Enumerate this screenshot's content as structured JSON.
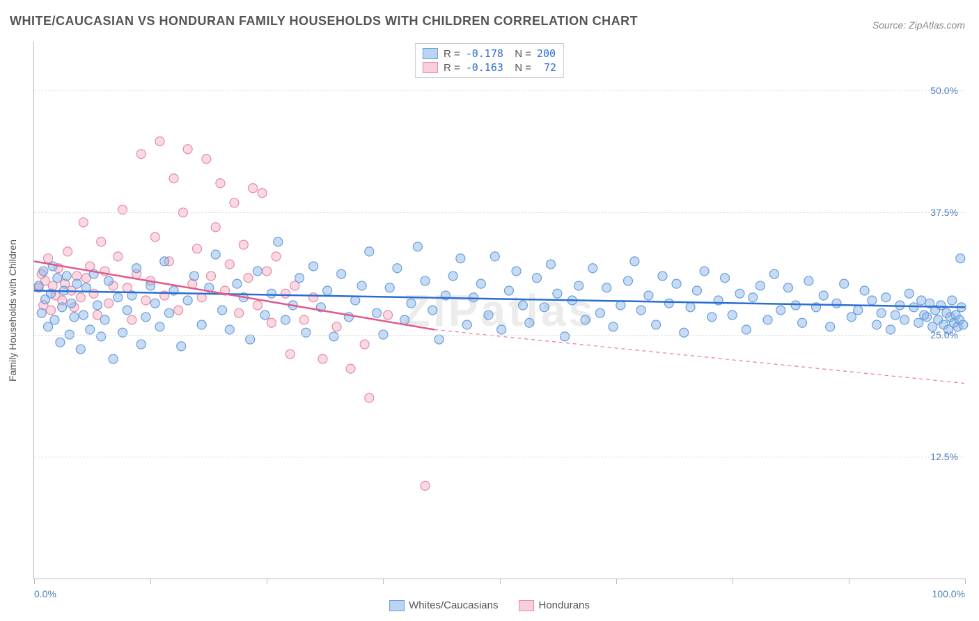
{
  "title": "WHITE/CAUCASIAN VS HONDURAN FAMILY HOUSEHOLDS WITH CHILDREN CORRELATION CHART",
  "source": "Source: ZipAtlas.com",
  "watermark": "ZIPatlas",
  "ylabel": "Family Households with Children",
  "axes": {
    "xlim": [
      0,
      100
    ],
    "ylim": [
      0,
      55
    ],
    "xticks": [
      0,
      12.5,
      25,
      37.5,
      50,
      62.5,
      75,
      87.5,
      100
    ],
    "xtick_labels": {
      "0": "0.0%",
      "100": "100.0%"
    },
    "yticks": [
      12.5,
      25.0,
      37.5,
      50.0
    ],
    "ytick_labels": [
      "12.5%",
      "25.0%",
      "37.5%",
      "50.0%"
    ],
    "grid_color": "#dddddd",
    "axis_color": "#bbbbbb",
    "tick_label_color": "#4a7ebb",
    "label_color": "#555555",
    "label_fontsize": 14
  },
  "series": {
    "blue": {
      "label": "Whites/Caucasians",
      "R": "-0.178",
      "N": "200",
      "marker_fill": "rgba(130,175,230,0.45)",
      "marker_stroke": "#6a9edb",
      "marker_radius": 6.5,
      "line_color": "#2a6ed0",
      "line_width": 2.5,
      "trend": {
        "x1": 0,
        "y1": 29.5,
        "x2": 100,
        "y2": 27.8
      },
      "points": [
        [
          0.5,
          30.0
        ],
        [
          0.8,
          27.2
        ],
        [
          1.0,
          31.5
        ],
        [
          1.2,
          28.6
        ],
        [
          1.5,
          25.8
        ],
        [
          1.8,
          29.2
        ],
        [
          2.0,
          32.0
        ],
        [
          2.2,
          26.5
        ],
        [
          2.5,
          30.8
        ],
        [
          2.8,
          24.2
        ],
        [
          3.0,
          27.8
        ],
        [
          3.2,
          29.5
        ],
        [
          3.5,
          31.0
        ],
        [
          3.8,
          25.0
        ],
        [
          4.0,
          28.2
        ],
        [
          4.3,
          26.8
        ],
        [
          4.6,
          30.2
        ],
        [
          5.0,
          23.5
        ],
        [
          5.3,
          27.0
        ],
        [
          5.6,
          29.8
        ],
        [
          6.0,
          25.5
        ],
        [
          6.4,
          31.2
        ],
        [
          6.8,
          28.0
        ],
        [
          7.2,
          24.8
        ],
        [
          7.6,
          26.5
        ],
        [
          8.0,
          30.5
        ],
        [
          8.5,
          22.5
        ],
        [
          9.0,
          28.8
        ],
        [
          9.5,
          25.2
        ],
        [
          10.0,
          27.5
        ],
        [
          10.5,
          29.0
        ],
        [
          11.0,
          31.8
        ],
        [
          11.5,
          24.0
        ],
        [
          12.0,
          26.8
        ],
        [
          12.5,
          30.0
        ],
        [
          13.0,
          28.2
        ],
        [
          13.5,
          25.8
        ],
        [
          14.0,
          32.5
        ],
        [
          14.5,
          27.2
        ],
        [
          15.0,
          29.5
        ],
        [
          15.8,
          23.8
        ],
        [
          16.5,
          28.5
        ],
        [
          17.2,
          31.0
        ],
        [
          18.0,
          26.0
        ],
        [
          18.8,
          29.8
        ],
        [
          19.5,
          33.2
        ],
        [
          20.2,
          27.5
        ],
        [
          21.0,
          25.5
        ],
        [
          21.8,
          30.2
        ],
        [
          22.5,
          28.8
        ],
        [
          23.2,
          24.5
        ],
        [
          24.0,
          31.5
        ],
        [
          24.8,
          27.0
        ],
        [
          25.5,
          29.2
        ],
        [
          26.2,
          34.5
        ],
        [
          27.0,
          26.5
        ],
        [
          27.8,
          28.0
        ],
        [
          28.5,
          30.8
        ],
        [
          29.2,
          25.2
        ],
        [
          30.0,
          32.0
        ],
        [
          30.8,
          27.8
        ],
        [
          31.5,
          29.5
        ],
        [
          32.2,
          24.8
        ],
        [
          33.0,
          31.2
        ],
        [
          33.8,
          26.8
        ],
        [
          34.5,
          28.5
        ],
        [
          35.2,
          30.0
        ],
        [
          36.0,
          33.5
        ],
        [
          36.8,
          27.2
        ],
        [
          37.5,
          25.0
        ],
        [
          38.2,
          29.8
        ],
        [
          39.0,
          31.8
        ],
        [
          39.8,
          26.5
        ],
        [
          40.5,
          28.2
        ],
        [
          41.2,
          34.0
        ],
        [
          42.0,
          30.5
        ],
        [
          42.8,
          27.5
        ],
        [
          43.5,
          24.5
        ],
        [
          44.2,
          29.0
        ],
        [
          45.0,
          31.0
        ],
        [
          45.8,
          32.8
        ],
        [
          46.5,
          26.0
        ],
        [
          47.2,
          28.8
        ],
        [
          48.0,
          30.2
        ],
        [
          48.8,
          27.0
        ],
        [
          49.5,
          33.0
        ],
        [
          50.2,
          25.5
        ],
        [
          51.0,
          29.5
        ],
        [
          51.8,
          31.5
        ],
        [
          52.5,
          28.0
        ],
        [
          53.2,
          26.2
        ],
        [
          54.0,
          30.8
        ],
        [
          54.8,
          27.8
        ],
        [
          55.5,
          32.2
        ],
        [
          56.2,
          29.2
        ],
        [
          57.0,
          24.8
        ],
        [
          57.8,
          28.5
        ],
        [
          58.5,
          30.0
        ],
        [
          59.2,
          26.5
        ],
        [
          60.0,
          31.8
        ],
        [
          60.8,
          27.2
        ],
        [
          61.5,
          29.8
        ],
        [
          62.2,
          25.8
        ],
        [
          63.0,
          28.0
        ],
        [
          63.8,
          30.5
        ],
        [
          64.5,
          32.5
        ],
        [
          65.2,
          27.5
        ],
        [
          66.0,
          29.0
        ],
        [
          66.8,
          26.0
        ],
        [
          67.5,
          31.0
        ],
        [
          68.2,
          28.2
        ],
        [
          69.0,
          30.2
        ],
        [
          69.8,
          25.2
        ],
        [
          70.5,
          27.8
        ],
        [
          71.2,
          29.5
        ],
        [
          72.0,
          31.5
        ],
        [
          72.8,
          26.8
        ],
        [
          73.5,
          28.5
        ],
        [
          74.2,
          30.8
        ],
        [
          75.0,
          27.0
        ],
        [
          75.8,
          29.2
        ],
        [
          76.5,
          25.5
        ],
        [
          77.2,
          28.8
        ],
        [
          78.0,
          30.0
        ],
        [
          78.8,
          26.5
        ],
        [
          79.5,
          31.2
        ],
        [
          80.2,
          27.5
        ],
        [
          81.0,
          29.8
        ],
        [
          81.8,
          28.0
        ],
        [
          82.5,
          26.2
        ],
        [
          83.2,
          30.5
        ],
        [
          84.0,
          27.8
        ],
        [
          84.8,
          29.0
        ],
        [
          85.5,
          25.8
        ],
        [
          86.2,
          28.2
        ],
        [
          87.0,
          30.2
        ],
        [
          87.8,
          26.8
        ],
        [
          88.5,
          27.5
        ],
        [
          89.2,
          29.5
        ],
        [
          90.0,
          28.5
        ],
        [
          90.5,
          26.0
        ],
        [
          91.0,
          27.2
        ],
        [
          91.5,
          28.8
        ],
        [
          92.0,
          25.5
        ],
        [
          92.5,
          27.0
        ],
        [
          93.0,
          28.0
        ],
        [
          93.5,
          26.5
        ],
        [
          94.0,
          29.2
        ],
        [
          94.5,
          27.8
        ],
        [
          95.0,
          26.2
        ],
        [
          95.3,
          28.5
        ],
        [
          95.6,
          27.0
        ],
        [
          95.9,
          26.8
        ],
        [
          96.2,
          28.2
        ],
        [
          96.5,
          25.8
        ],
        [
          96.8,
          27.5
        ],
        [
          97.1,
          26.5
        ],
        [
          97.4,
          28.0
        ],
        [
          97.7,
          26.0
        ],
        [
          98.0,
          27.2
        ],
        [
          98.2,
          25.5
        ],
        [
          98.4,
          26.8
        ],
        [
          98.6,
          28.5
        ],
        [
          98.8,
          26.2
        ],
        [
          99.0,
          27.0
        ],
        [
          99.2,
          25.8
        ],
        [
          99.4,
          26.5
        ],
        [
          99.6,
          27.8
        ],
        [
          99.8,
          26.0
        ],
        [
          99.5,
          32.8
        ]
      ]
    },
    "pink": {
      "label": "Hondurans",
      "R": "-0.163",
      "N": "72",
      "marker_fill": "rgba(245,170,190,0.45)",
      "marker_stroke": "#e88aa5",
      "marker_radius": 6.5,
      "line_color": "#e15a8a",
      "line_width": 2.5,
      "trend_solid": {
        "x1": 0,
        "y1": 32.5,
        "x2": 43,
        "y2": 25.5
      },
      "trend_dash": {
        "x1": 43,
        "y1": 25.5,
        "x2": 100,
        "y2": 20.0
      },
      "points": [
        [
          0.5,
          29.8
        ],
        [
          0.8,
          31.2
        ],
        [
          1.0,
          28.0
        ],
        [
          1.2,
          30.5
        ],
        [
          1.5,
          32.8
        ],
        [
          1.8,
          27.5
        ],
        [
          2.0,
          30.0
        ],
        [
          2.3,
          29.0
        ],
        [
          2.6,
          31.8
        ],
        [
          3.0,
          28.5
        ],
        [
          3.3,
          30.2
        ],
        [
          3.6,
          33.5
        ],
        [
          4.0,
          29.5
        ],
        [
          4.3,
          27.8
        ],
        [
          4.6,
          31.0
        ],
        [
          5.0,
          28.8
        ],
        [
          5.3,
          36.5
        ],
        [
          5.6,
          30.8
        ],
        [
          6.0,
          32.0
        ],
        [
          6.4,
          29.2
        ],
        [
          6.8,
          27.0
        ],
        [
          7.2,
          34.5
        ],
        [
          7.6,
          31.5
        ],
        [
          8.0,
          28.2
        ],
        [
          8.5,
          30.0
        ],
        [
          9.0,
          33.0
        ],
        [
          9.5,
          37.8
        ],
        [
          10.0,
          29.8
        ],
        [
          10.5,
          26.5
        ],
        [
          11.0,
          31.2
        ],
        [
          11.5,
          43.5
        ],
        [
          12.0,
          28.5
        ],
        [
          12.5,
          30.5
        ],
        [
          13.0,
          35.0
        ],
        [
          13.5,
          44.8
        ],
        [
          14.0,
          29.0
        ],
        [
          14.5,
          32.5
        ],
        [
          15.0,
          41.0
        ],
        [
          15.5,
          27.5
        ],
        [
          16.0,
          37.5
        ],
        [
          16.5,
          44.0
        ],
        [
          17.0,
          30.2
        ],
        [
          17.5,
          33.8
        ],
        [
          18.0,
          28.8
        ],
        [
          18.5,
          43.0
        ],
        [
          19.0,
          31.0
        ],
        [
          19.5,
          36.0
        ],
        [
          20.0,
          40.5
        ],
        [
          20.5,
          29.5
        ],
        [
          21.0,
          32.2
        ],
        [
          21.5,
          38.5
        ],
        [
          22.0,
          27.2
        ],
        [
          22.5,
          34.2
        ],
        [
          23.0,
          30.8
        ],
        [
          23.5,
          40.0
        ],
        [
          24.0,
          28.0
        ],
        [
          24.5,
          39.5
        ],
        [
          25.0,
          31.5
        ],
        [
          25.5,
          26.2
        ],
        [
          26.0,
          33.0
        ],
        [
          27.0,
          29.2
        ],
        [
          27.5,
          23.0
        ],
        [
          28.0,
          30.0
        ],
        [
          29.0,
          26.5
        ],
        [
          30.0,
          28.8
        ],
        [
          31.0,
          22.5
        ],
        [
          32.5,
          25.8
        ],
        [
          34.0,
          21.5
        ],
        [
          35.5,
          24.0
        ],
        [
          36.0,
          18.5
        ],
        [
          38.0,
          27.0
        ],
        [
          42.0,
          9.5
        ]
      ]
    }
  },
  "background_color": "#ffffff",
  "title_color": "#555555",
  "title_fontsize": 18
}
